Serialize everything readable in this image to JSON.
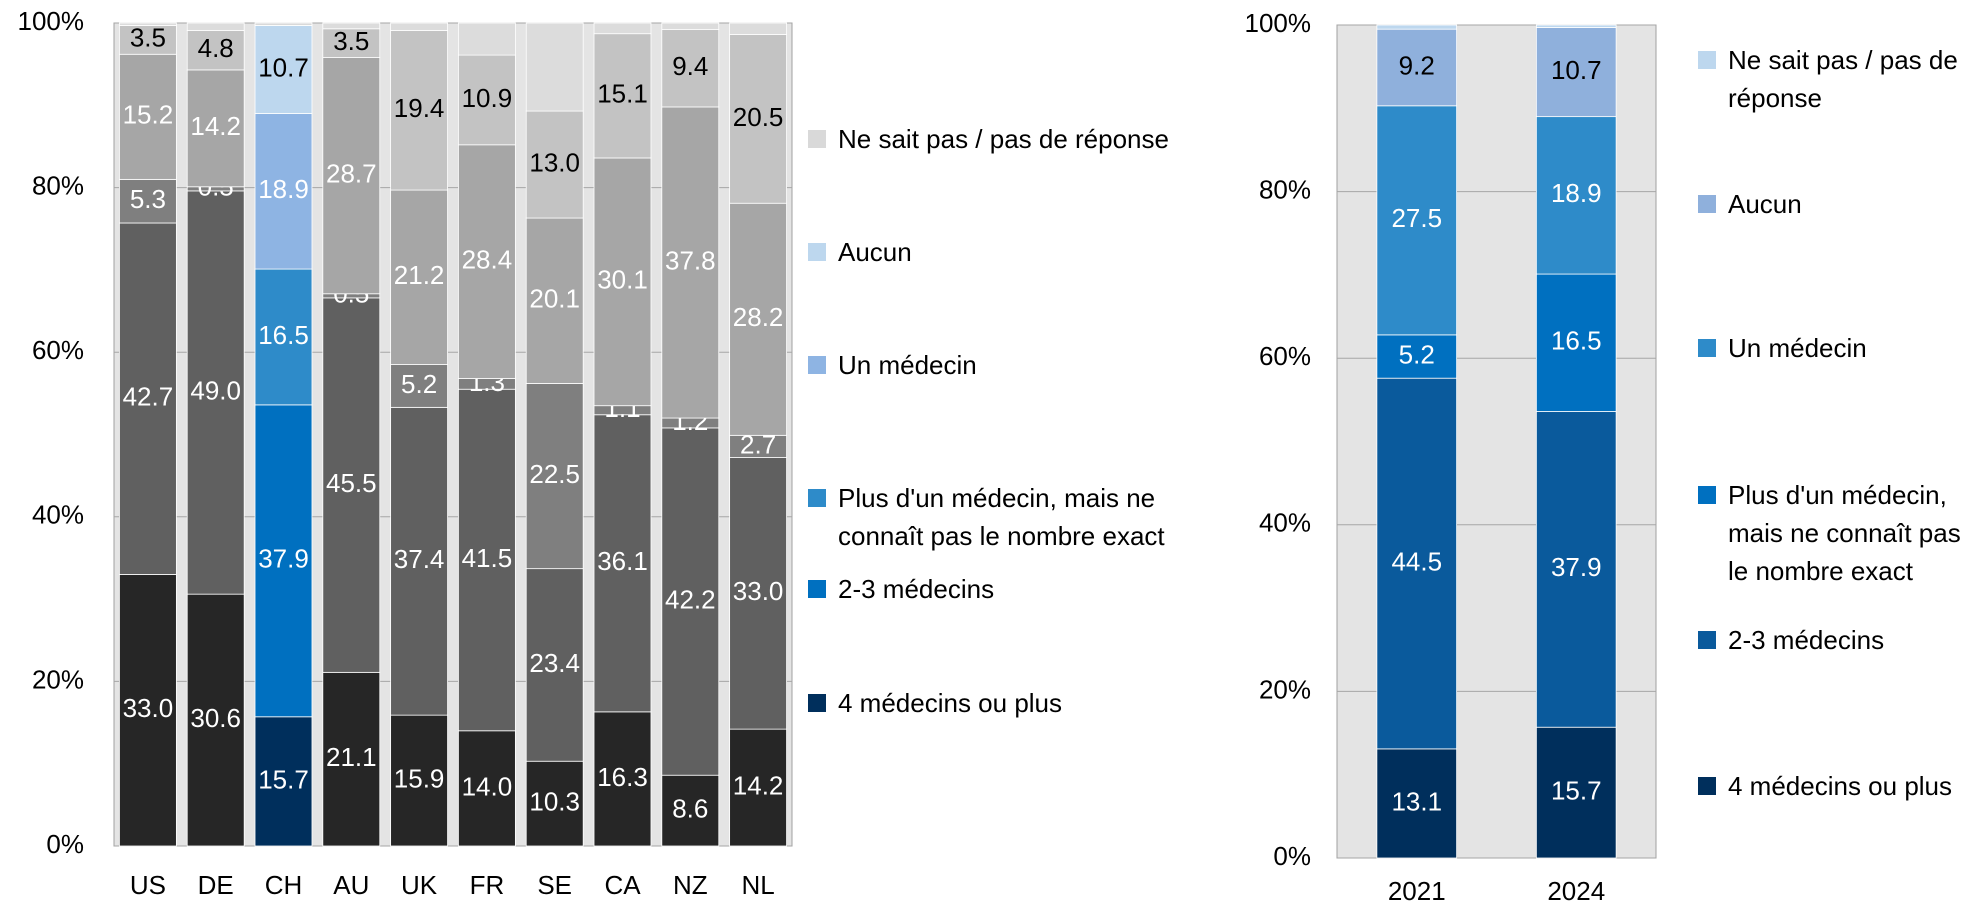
{
  "chart_data": [
    {
      "type": "bar",
      "stacked": true,
      "highlight": "CH",
      "categories": [
        "US",
        "DE",
        "CH",
        "AU",
        "UK",
        "FR",
        "SE",
        "CA",
        "NZ",
        "NL"
      ],
      "ylim": [
        0,
        100
      ],
      "yticks": [
        {
          "value": 0,
          "label": "0%"
        },
        {
          "value": 20,
          "label": "20%"
        },
        {
          "value": 40,
          "label": "40%"
        },
        {
          "value": 60,
          "label": "60%"
        },
        {
          "value": 80,
          "label": "80%"
        },
        {
          "value": 100,
          "label": "100%"
        }
      ],
      "grid": true,
      "series": [
        {
          "name": "4 médecins ou plus",
          "color": "#002f5c",
          "muted_color": "#262626",
          "label_color": "#ffffff",
          "values": [
            33.0,
            30.6,
            15.7,
            21.1,
            15.9,
            14.0,
            10.3,
            16.3,
            8.6,
            14.2
          ],
          "value_labels": [
            "33.0",
            "30.6",
            "15.7",
            "21.1",
            "15.9",
            "14.0",
            "10.3",
            "16.3",
            "8.6",
            "14.2"
          ]
        },
        {
          "name": "2-3 médecins",
          "color": "#0070c0",
          "muted_color": "#606060",
          "label_color": "#ffffff",
          "values": [
            42.7,
            49.0,
            37.9,
            45.5,
            37.4,
            41.5,
            23.4,
            36.1,
            42.2,
            33.0
          ],
          "value_labels": [
            "42.7",
            "49.0",
            "37.9",
            "45.5",
            "37.4",
            "41.5",
            "23.4",
            "36.1",
            "42.2",
            "33.0"
          ]
        },
        {
          "name": "Plus d'un médecin, mais ne connaît pas le nombre exact",
          "color": "#2e8bc9",
          "muted_color": "#7f7f7f",
          "label_color": "#ffffff",
          "values": [
            5.3,
            0.5,
            16.5,
            0.5,
            5.2,
            1.3,
            22.5,
            1.1,
            1.2,
            2.7
          ],
          "value_labels": [
            "5.3",
            "0.5",
            "16.5",
            "0.5",
            "5.2",
            "1.3",
            "22.5",
            "1.1",
            "1.2",
            "2.7"
          ]
        },
        {
          "name": "Un médecin",
          "color": "#8eb4e3",
          "muted_color": "#a6a6a6",
          "label_color": "#ffffff",
          "values": [
            15.2,
            14.2,
            18.9,
            28.7,
            21.2,
            28.4,
            20.1,
            30.1,
            37.8,
            28.2
          ],
          "value_labels": [
            "15.2",
            "14.2",
            "18.9",
            "28.7",
            "21.2",
            "28.4",
            "20.1",
            "30.1",
            "37.8",
            "28.2"
          ]
        },
        {
          "name": "Aucun",
          "color": "#bdd7ee",
          "muted_color": "#c3c3c3",
          "label_color": "#000000",
          "values": [
            3.5,
            4.8,
            10.7,
            3.5,
            19.4,
            10.9,
            13.0,
            15.1,
            9.4,
            20.5
          ],
          "value_labels": [
            "3.5",
            "4.8",
            "10.7",
            "3.5",
            "19.4",
            "10.9",
            "13.0",
            "15.1",
            "9.4",
            "20.5"
          ]
        },
        {
          "name": "Ne sait pas / pas de réponse",
          "color": "#d9d9d9",
          "muted_color": "#dcdcdc",
          "label_color": "#000000",
          "values": [
            0.3,
            0.9,
            0.3,
            0.7,
            0.9,
            3.9,
            10.7,
            1.3,
            0.8,
            1.4
          ],
          "value_labels": [
            null,
            null,
            null,
            null,
            null,
            null,
            null,
            null,
            null,
            null
          ]
        }
      ]
    },
    {
      "type": "bar",
      "stacked": true,
      "categories": [
        "2021",
        "2024"
      ],
      "ylim": [
        0,
        100
      ],
      "yticks": [
        {
          "value": 0,
          "label": "0%"
        },
        {
          "value": 20,
          "label": "20%"
        },
        {
          "value": 40,
          "label": "40%"
        },
        {
          "value": 60,
          "label": "60%"
        },
        {
          "value": 80,
          "label": "80%"
        },
        {
          "value": 100,
          "label": "100%"
        }
      ],
      "grid": true,
      "series": [
        {
          "name": "4 médecins ou plus",
          "color": "#002f5c",
          "label_color": "#ffffff",
          "values": [
            13.1,
            15.7
          ],
          "value_labels": [
            "13.1",
            "15.7"
          ]
        },
        {
          "name": "2-3 médecins",
          "color": "#0a5a9c",
          "label_color": "#ffffff",
          "values": [
            44.5,
            37.9
          ],
          "value_labels": [
            "44.5",
            "37.9"
          ]
        },
        {
          "name": "Plus d'un médecin, mais ne connaît pas le nombre exact",
          "color": "#0070c0",
          "label_color": "#ffffff",
          "values": [
            5.2,
            16.5
          ],
          "value_labels": [
            "5.2",
            "16.5"
          ]
        },
        {
          "name": "Un médecin",
          "color": "#2e8bc9",
          "label_color": "#ffffff",
          "values": [
            27.5,
            18.9
          ],
          "value_labels": [
            "27.5",
            "18.9"
          ]
        },
        {
          "name": "Aucun",
          "color": "#8fb0dc",
          "label_color": "#000000",
          "values": [
            9.2,
            10.7
          ],
          "value_labels": [
            "9.2",
            "10.7"
          ]
        },
        {
          "name": "Ne sait pas / pas de réponse",
          "color": "#bdd7ee",
          "label_color": "#000000",
          "values": [
            0.5,
            0.3
          ],
          "value_labels": [
            null,
            null
          ]
        }
      ]
    }
  ]
}
